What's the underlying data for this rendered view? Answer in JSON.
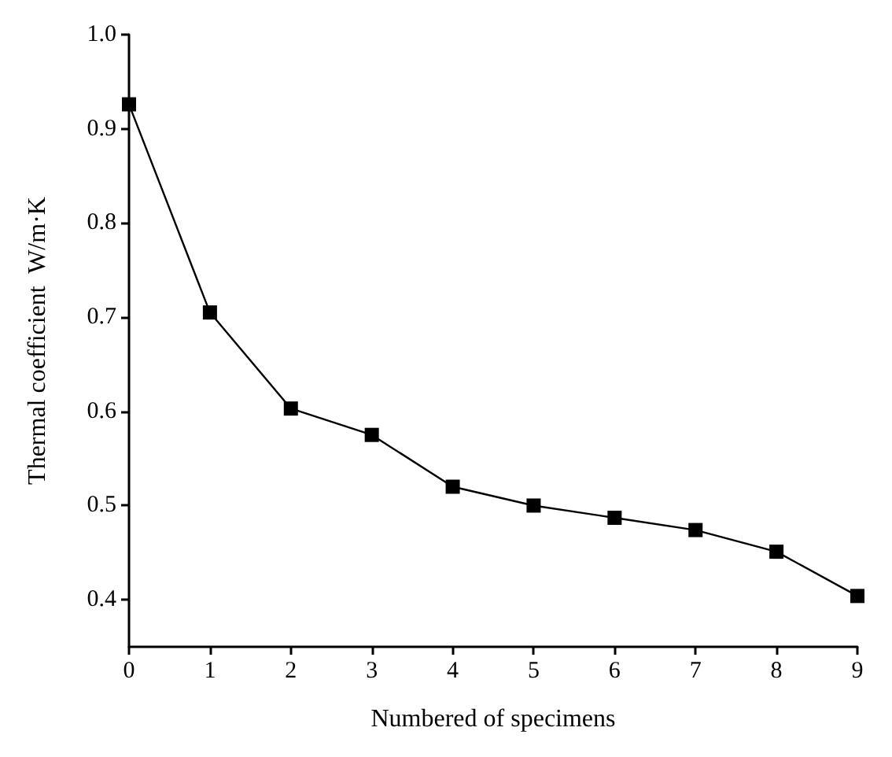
{
  "chart_data": {
    "type": "line",
    "xlabel": "Numbered of specimens",
    "ylabel": "Thermal coefficient  W/m·K",
    "x": [
      0,
      1,
      2,
      3,
      4,
      5,
      6,
      7,
      8,
      9
    ],
    "series": [
      {
        "color": "#000000",
        "values": [
          0.926,
          0.705,
          0.603,
          0.575,
          0.52,
          0.5,
          0.487,
          0.474,
          0.451,
          0.404
        ]
      }
    ],
    "xlim": [
      0,
      9
    ],
    "xticks": [
      0,
      1,
      2,
      3,
      4,
      5,
      6,
      7,
      8,
      9
    ],
    "ylim": [
      0.35,
      1.0
    ],
    "yticks": [
      0.4,
      0.5,
      0.6,
      0.7,
      0.8,
      0.9,
      {
        "value": 1.0,
        "label": "1.0"
      }
    ],
    "marker": "square",
    "line_style": "solid",
    "grid": false
  }
}
